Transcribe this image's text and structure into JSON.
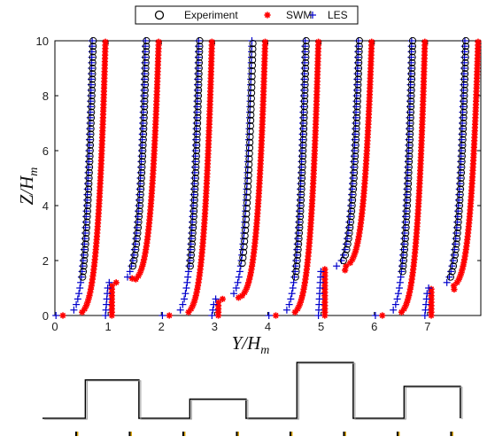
{
  "chart_data": {
    "type": "scatter",
    "xlabel": "Y/H_m",
    "ylabel": "Z/H_m",
    "xlim": [
      0,
      8
    ],
    "ylim": [
      0,
      10
    ],
    "x_ticks": [
      0,
      1,
      2,
      3,
      4,
      5,
      6,
      7
    ],
    "y_ticks": [
      0,
      2,
      4,
      6,
      8,
      10
    ],
    "grid": false,
    "legend_position": "top-center",
    "legend_entries": [
      "Experiment",
      "SWM",
      "LES"
    ],
    "series": [
      {
        "name": "Experiment",
        "marker": "circle-open",
        "color": "#000000"
      },
      {
        "name": "SWM",
        "marker": "asterisk",
        "color": "#ff0000"
      },
      {
        "name": "LES",
        "marker": "plus",
        "color": "#0000cc"
      }
    ],
    "profiles": [
      {
        "station": 0,
        "exp_top": 0.72,
        "swm_top": 0.95,
        "les_top": 0.7,
        "bottom_height": 0,
        "swm_outlier": null,
        "exp_bottom": 1.4
      },
      {
        "station": 1,
        "exp_top": 1.72,
        "swm_top": 1.95,
        "les_top": 1.7,
        "bottom_height": 1.2,
        "swm_outlier": [
          1.45,
          1.35
        ],
        "exp_bottom": 1.8
      },
      {
        "station": 2,
        "exp_top": 2.72,
        "swm_top": 2.95,
        "les_top": 2.7,
        "bottom_height": 0,
        "swm_outlier": null,
        "exp_bottom": 1.8
      },
      {
        "station": 3,
        "exp_top": 3.72,
        "swm_top": 3.95,
        "les_top": 3.7,
        "bottom_height": 0.6,
        "swm_outlier": [
          3.45,
          0.65
        ],
        "exp_bottom": 1.9
      },
      {
        "station": 4,
        "exp_top": 4.72,
        "swm_top": 4.95,
        "les_top": 4.7,
        "bottom_height": 0,
        "swm_outlier": null,
        "exp_bottom": 1.4
      },
      {
        "station": 5,
        "exp_top": 5.72,
        "swm_top": 5.95,
        "les_top": 5.7,
        "bottom_height": 1.75,
        "swm_outlier": [
          5.45,
          1.65
        ],
        "exp_bottom": 2.0
      },
      {
        "station": 6,
        "exp_top": 6.72,
        "swm_top": 6.95,
        "les_top": 6.7,
        "bottom_height": 0,
        "swm_outlier": null,
        "exp_bottom": 1.6
      },
      {
        "station": 7,
        "exp_top": 7.72,
        "swm_top": 7.95,
        "les_top": 7.7,
        "bottom_height": 1.0,
        "swm_outlier": [
          7.5,
          0.95
        ],
        "exp_bottom": 1.4
      }
    ],
    "terrain_profile": {
      "segments": [
        {
          "x0": 0,
          "x1": 0.8,
          "h": 0
        },
        {
          "x0": 0.8,
          "x1": 1.8,
          "h": 1.2
        },
        {
          "x0": 1.8,
          "x1": 2.75,
          "h": 0
        },
        {
          "x0": 2.75,
          "x1": 3.8,
          "h": 0.6
        },
        {
          "x0": 3.8,
          "x1": 4.75,
          "h": 0
        },
        {
          "x0": 4.75,
          "x1": 5.8,
          "h": 1.75
        },
        {
          "x0": 5.8,
          "x1": 6.75,
          "h": 0
        },
        {
          "x0": 6.75,
          "x1": 7.8,
          "h": 1.0
        }
      ],
      "probe_markers": [
        0.47,
        1.47,
        2.47,
        3.47,
        4.47,
        5.47,
        6.47,
        7.47
      ]
    }
  }
}
